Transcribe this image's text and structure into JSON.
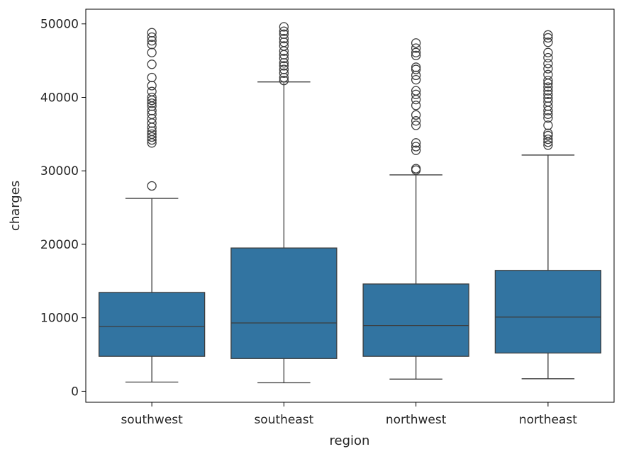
{
  "chart_data": {
    "type": "box",
    "xlabel": "region",
    "ylabel": "charges",
    "ylim": [
      -1500,
      52000
    ],
    "yticks": [
      0,
      10000,
      20000,
      30000,
      40000,
      50000
    ],
    "grid": false,
    "box_color": "#3274a1",
    "line_color": "#3d3d3d",
    "categories": [
      "southwest",
      "southeast",
      "northwest",
      "northeast"
    ],
    "boxes": [
      {
        "category": "southwest",
        "whisker_low": 1250,
        "q1": 4750,
        "median": 8800,
        "q3": 13450,
        "whisker_high": 26250,
        "outliers": [
          27950,
          33800,
          34200,
          34600,
          35000,
          35400,
          35900,
          36500,
          37100,
          37700,
          38200,
          38800,
          39200,
          39600,
          40000,
          40800,
          41600,
          42700,
          44500,
          46100,
          47200,
          47700,
          48200,
          48800
        ]
      },
      {
        "category": "southeast",
        "whisker_low": 1150,
        "q1": 4450,
        "median": 9300,
        "q3": 19500,
        "whisker_high": 42100,
        "outliers": [
          42300,
          42700,
          43300,
          43800,
          44300,
          44700,
          45300,
          45800,
          46300,
          47000,
          47500,
          48000,
          48600,
          49000,
          49600
        ]
      },
      {
        "category": "northwest",
        "whisker_low": 1650,
        "q1": 4750,
        "median": 8950,
        "q3": 14600,
        "whisker_high": 29450,
        "outliers": [
          30100,
          30300,
          32800,
          33300,
          33800,
          36200,
          36800,
          37600,
          38900,
          39700,
          40400,
          40900,
          42400,
          43000,
          43800,
          44100,
          45700,
          46100,
          46700,
          47400
        ]
      },
      {
        "category": "northeast",
        "whisker_low": 1700,
        "q1": 5200,
        "median": 10100,
        "q3": 16450,
        "whisker_high": 32150,
        "outliers": [
          33500,
          33900,
          34300,
          34800,
          35100,
          36200,
          37200,
          37700,
          38200,
          38800,
          39400,
          39900,
          40400,
          40900,
          41400,
          41900,
          42300,
          43100,
          43900,
          44600,
          45400,
          46100,
          47500,
          48100,
          48500
        ]
      }
    ]
  }
}
